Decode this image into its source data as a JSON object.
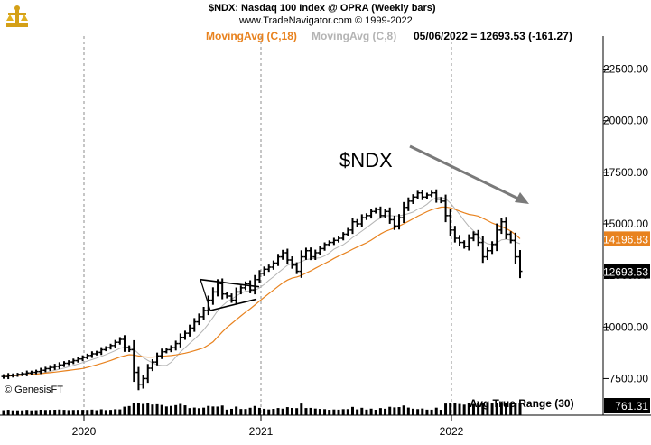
{
  "header": {
    "title": "$NDX:  Nasdaq 100 Index @ OPRA  (Weekly bars)",
    "subtitle": "www.TradeNavigator.com © 1999-2022",
    "ma18_label": "MovingAvg (C,18)",
    "ma8_label": "MovingAvg (C,8)",
    "quote": "05/06/2022 = 12693.53 (-161.27)"
  },
  "colors": {
    "price_bars": "#000000",
    "ma18": "#e8821e",
    "ma8": "#b4b4b4",
    "trend_arrow": "#7a7a7a",
    "ma_price_box": "#e8821e",
    "last_price_box": "#000000"
  },
  "chart_data": {
    "type": "ohlc-bar",
    "title": "$NDX:  Nasdaq 100 Index @ OPRA  (Weekly bars)",
    "annotation": "$NDX",
    "watermark": "© GenesisFT",
    "x_labels": [
      "2020",
      "2021",
      "2022"
    ],
    "y_ticks": [
      7500,
      10000,
      12500,
      15000,
      17500,
      20000,
      22500
    ],
    "y_tick_labels": [
      "7500.00",
      "10000.00",
      "12500.00",
      "15000.00",
      "17500.00",
      "20000.00",
      "22500.00"
    ],
    "ylim": [
      6600,
      24100
    ],
    "price_scale": "linear",
    "grid": "vertical dashed lines at year starts",
    "ma18_price_label": "14196.83",
    "last_price_label": "12693.53",
    "lower_panel_label": "Avg True Range (30)",
    "lower_panel_value": "761.31",
    "closes": [
      7600,
      7640,
      7660,
      7700,
      7730,
      7770,
      7800,
      7840,
      7900,
      7980,
      8040,
      8090,
      8160,
      8240,
      8300,
      8370,
      8450,
      8520,
      8620,
      8700,
      8770,
      8900,
      9000,
      9100,
      9260,
      9400,
      9000,
      8900,
      7800,
      7200,
      7500,
      8000,
      8300,
      8600,
      8800,
      8900,
      9000,
      9200,
      9500,
      9700,
      9950,
      10250,
      10500,
      10800,
      11300,
      11700,
      12100,
      11600,
      11500,
      11300,
      11700,
      11900,
      12100,
      11800,
      12300,
      12600,
      12800,
      12900,
      13100,
      13400,
      13600,
      13250,
      13000,
      12700,
      13400,
      13700,
      13400,
      13600,
      13800,
      14000,
      14100,
      14200,
      14300,
      14500,
      14700,
      15100,
      15000,
      15300,
      15400,
      15600,
      15700,
      15400,
      15600,
      15200,
      14900,
      15300,
      15800,
      16100,
      16300,
      16500,
      16300,
      16400,
      16500,
      16200,
      16100,
      15400,
      14700,
      14300,
      14100,
      13900,
      14300,
      14500,
      14100,
      13400,
      13700,
      14000,
      14700,
      15100,
      14500,
      14200,
      13400,
      12700
    ],
    "notes": "Weekly OHLC bars of the Nasdaq 100 from late 2019 to 05/06/2022 with 18-week (orange) and 8-week (grey) moving averages, a converging triangle in late 2020 and a grey downward trend arrow across the 2021-2022 top."
  }
}
